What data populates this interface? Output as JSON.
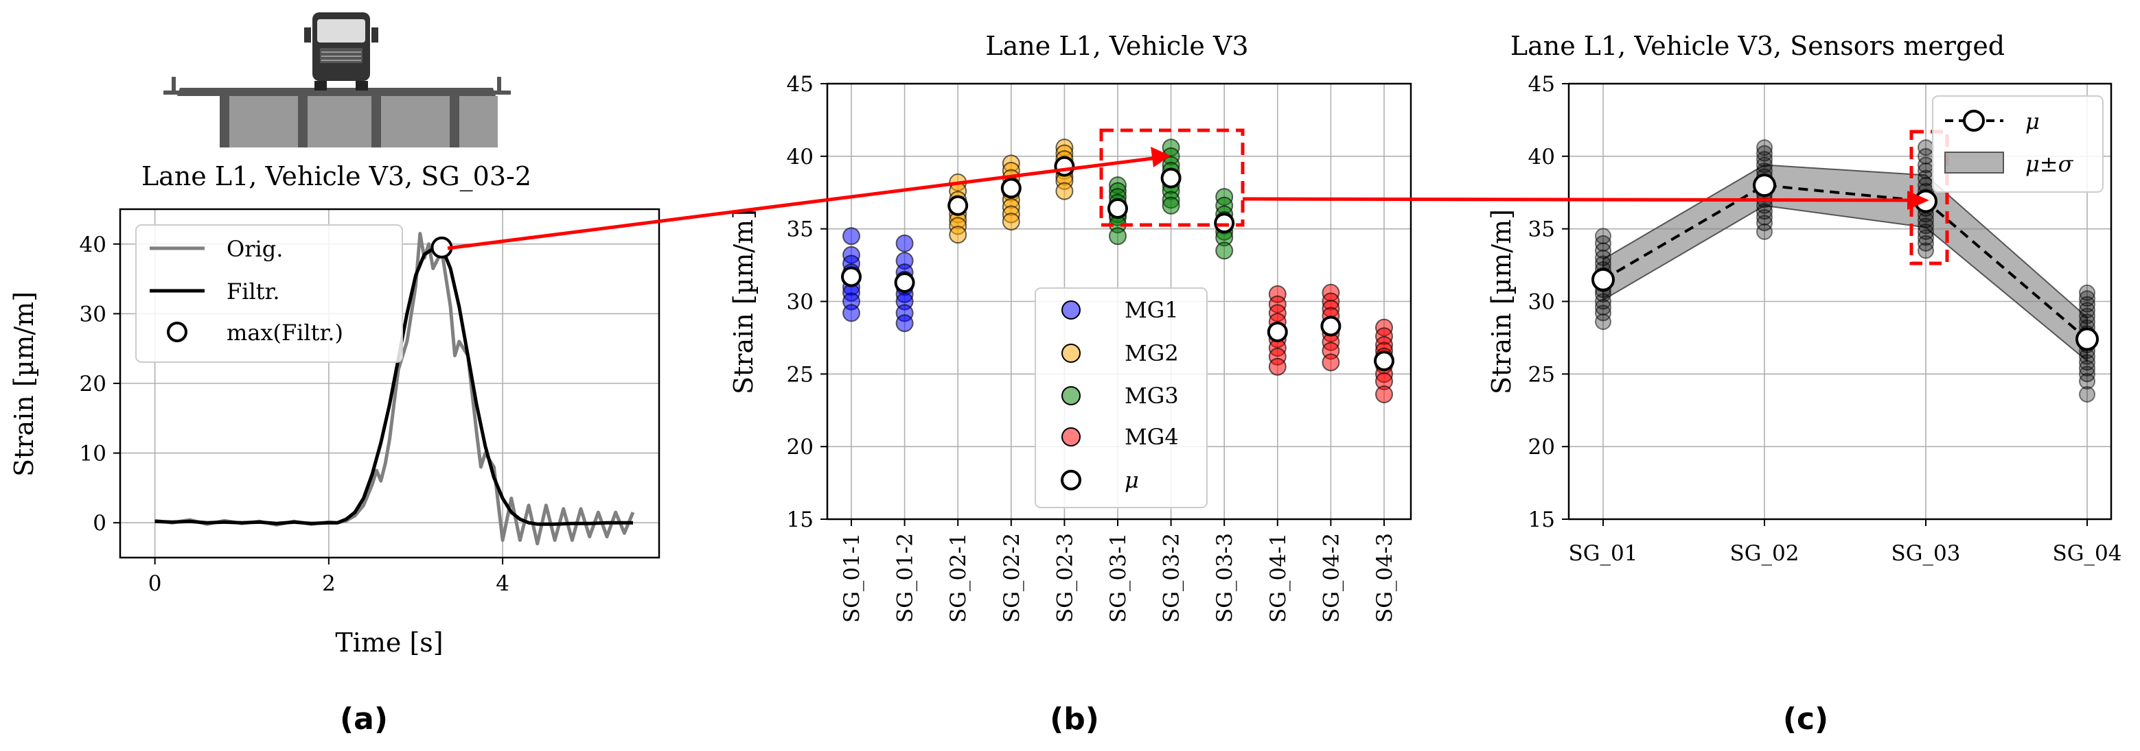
{
  "colors": {
    "orig": "#808080",
    "filtr": "#000000",
    "MG1": "#0000ff",
    "MG2": "#ffa500",
    "MG3": "#008000",
    "MG4": "#ff0000",
    "highlight": "#ff0000",
    "band": "#808080",
    "grid": "#b0b0b0"
  },
  "icons": {
    "bridge": "bridge-with-truck-icon"
  },
  "captions": {
    "a": "(a)",
    "b": "(b)",
    "c": "(c)"
  },
  "chart_data": [
    {
      "id": "a",
      "type": "line",
      "title": "Lane L1, Vehicle V3, SG_03-2",
      "xlabel": "Time [s]",
      "ylabel": "Strain [µm/m]",
      "xlim": [
        -0.4,
        5.8
      ],
      "ylim": [
        -5,
        45
      ],
      "xticks": [
        0,
        2,
        4
      ],
      "yticks": [
        0,
        10,
        20,
        30,
        40
      ],
      "grid": true,
      "legend": {
        "position": "upper-left",
        "entries": [
          "Orig.",
          "Filtr.",
          "max(Filtr.)"
        ]
      },
      "series": [
        {
          "name": "Orig.",
          "x": [
            0,
            0.2,
            0.4,
            0.6,
            0.8,
            1.0,
            1.2,
            1.4,
            1.6,
            1.8,
            2.0,
            2.1,
            2.2,
            2.3,
            2.4,
            2.5,
            2.55,
            2.6,
            2.65,
            2.7,
            2.75,
            2.8,
            2.9,
            3.0,
            3.05,
            3.1,
            3.15,
            3.2,
            3.3,
            3.4,
            3.45,
            3.5,
            3.6,
            3.7,
            3.75,
            3.8,
            3.9,
            4.0,
            4.1,
            4.2,
            4.3,
            4.4,
            4.5,
            4.6,
            4.7,
            4.8,
            4.9,
            5.0,
            5.1,
            5.2,
            5.3,
            5.4,
            5.5
          ],
          "y": [
            0.3,
            0.0,
            0.4,
            -0.2,
            0.3,
            -0.1,
            0.2,
            -0.3,
            0.2,
            -0.2,
            0.1,
            0.0,
            0.3,
            1.0,
            2.5,
            5.5,
            7.5,
            6.0,
            8.5,
            12.0,
            17.0,
            22.0,
            26.0,
            34.0,
            41.5,
            38.0,
            40.0,
            36.5,
            39.0,
            31.0,
            24.0,
            26.0,
            24.0,
            13.0,
            8.0,
            10.0,
            8.0,
            -2.5,
            3.5,
            -2.5,
            2.5,
            -3.0,
            2.5,
            -2.5,
            2.0,
            -2.5,
            2.0,
            -2.0,
            1.5,
            -2.0,
            1.5,
            -1.5,
            1.5
          ]
        },
        {
          "name": "Filtr.",
          "x": [
            0,
            0.2,
            0.4,
            0.6,
            0.8,
            1.0,
            1.2,
            1.4,
            1.6,
            1.8,
            2.0,
            2.1,
            2.2,
            2.3,
            2.4,
            2.5,
            2.6,
            2.7,
            2.8,
            2.9,
            3.0,
            3.1,
            3.2,
            3.3,
            3.4,
            3.5,
            3.6,
            3.7,
            3.8,
            3.9,
            4.0,
            4.1,
            4.2,
            4.3,
            4.4,
            4.6,
            4.8,
            5.0,
            5.2,
            5.5
          ],
          "y": [
            0.2,
            0.1,
            0.2,
            0.0,
            0.1,
            0.0,
            0.1,
            -0.1,
            0.1,
            -0.1,
            0.0,
            0.0,
            0.5,
            1.5,
            3.5,
            7.0,
            11.5,
            17.0,
            23.5,
            30.0,
            35.5,
            38.5,
            39.3,
            39.5,
            36.5,
            31.0,
            24.0,
            17.0,
            11.0,
            6.5,
            3.5,
            1.5,
            0.5,
            0.0,
            -0.2,
            -0.2,
            -0.1,
            -0.1,
            0.0,
            0.0
          ]
        }
      ],
      "max_marker": {
        "x": 3.3,
        "y": 39.5
      }
    },
    {
      "id": "b",
      "type": "scatter",
      "title": "Lane L1, Vehicle V3",
      "xlabel": "",
      "ylabel": "Strain [µm/m]",
      "ylim": [
        15,
        45
      ],
      "yticks": [
        15,
        20,
        25,
        30,
        35,
        40,
        45
      ],
      "grid": true,
      "categories": [
        "SG_01-1",
        "SG_01-2",
        "SG_02-1",
        "SG_02-2",
        "SG_02-3",
        "SG_03-1",
        "SG_03-2",
        "SG_03-3",
        "SG_04-1",
        "SG_04-2",
        "SG_04-3"
      ],
      "groups": [
        "MG1",
        "MG1",
        "MG2",
        "MG2",
        "MG2",
        "MG3",
        "MG3",
        "MG3",
        "MG4",
        "MG4",
        "MG4"
      ],
      "points": [
        [
          34.5,
          33.2,
          32.6,
          32.0,
          31.6,
          31.0,
          30.6,
          30.0,
          29.2
        ],
        [
          34.0,
          32.8,
          32.0,
          31.5,
          31.0,
          30.5,
          30.0,
          29.2,
          28.5
        ],
        [
          38.2,
          37.6,
          37.0,
          36.5,
          36.0,
          35.6,
          35.2,
          34.6
        ],
        [
          39.5,
          39.0,
          38.5,
          38.0,
          37.5,
          37.0,
          36.5,
          36.0,
          35.5
        ],
        [
          40.6,
          40.2,
          39.8,
          39.4,
          39.0,
          38.6,
          38.3,
          37.6
        ],
        [
          38.0,
          37.6,
          37.2,
          36.8,
          36.4,
          36.0,
          35.8,
          35.3,
          34.5
        ],
        [
          40.6,
          40.0,
          39.4,
          39.0,
          38.5,
          38.0,
          37.6,
          37.0,
          36.6
        ],
        [
          37.2,
          36.6,
          36.0,
          35.6,
          35.2,
          34.8,
          34.4,
          33.5
        ],
        [
          30.5,
          29.8,
          29.2,
          28.6,
          28.0,
          27.4,
          26.8,
          26.2,
          25.5
        ],
        [
          30.6,
          30.0,
          29.5,
          29.0,
          28.4,
          27.8,
          27.2,
          26.6,
          25.8
        ],
        [
          28.2,
          27.6,
          27.0,
          26.6,
          26.2,
          25.6,
          25.0,
          24.5,
          23.6
        ]
      ],
      "means": [
        31.7,
        31.3,
        36.6,
        37.8,
        39.3,
        36.4,
        38.5,
        35.4,
        27.9,
        28.3,
        25.9
      ],
      "legend": {
        "position": "lower-center",
        "entries": [
          "MG1",
          "MG2",
          "MG3",
          "MG4",
          "μ"
        ]
      },
      "highlight_categories": [
        "SG_03-1",
        "SG_03-3"
      ]
    },
    {
      "id": "c",
      "type": "line",
      "title": "Lane L1, Vehicle V3, Sensors merged",
      "xlabel": "",
      "ylabel": "Strain [µm/m]",
      "ylim": [
        15,
        45
      ],
      "yticks": [
        15,
        20,
        25,
        30,
        35,
        40,
        45
      ],
      "grid": true,
      "categories": [
        "SG_01",
        "SG_02",
        "SG_03",
        "SG_04"
      ],
      "mean": [
        31.5,
        38.0,
        36.9,
        27.4
      ],
      "std": [
        1.4,
        1.4,
        1.8,
        1.5
      ],
      "points": [
        [
          34.5,
          34.0,
          33.5,
          33.0,
          32.6,
          32.2,
          31.8,
          31.5,
          31.2,
          30.8,
          30.5,
          30.0,
          29.6,
          29.2,
          28.6
        ],
        [
          40.6,
          40.2,
          39.8,
          39.4,
          39.0,
          38.6,
          38.2,
          37.8,
          37.4,
          37.0,
          36.6,
          36.2,
          35.8,
          35.4,
          34.8
        ],
        [
          40.6,
          40.0,
          39.4,
          39.0,
          38.5,
          38.0,
          37.6,
          37.2,
          36.8,
          36.4,
          36.0,
          35.6,
          35.2,
          34.8,
          34.4,
          34.0,
          33.5
        ],
        [
          30.6,
          30.2,
          29.8,
          29.4,
          29.0,
          28.6,
          28.2,
          27.8,
          27.4,
          27.0,
          26.6,
          26.2,
          25.8,
          25.4,
          25.0,
          24.5,
          23.6
        ]
      ],
      "legend": {
        "position": "upper-right",
        "entries": [
          "μ",
          "μ±σ"
        ]
      },
      "highlight_categories": [
        "SG_03"
      ]
    }
  ]
}
